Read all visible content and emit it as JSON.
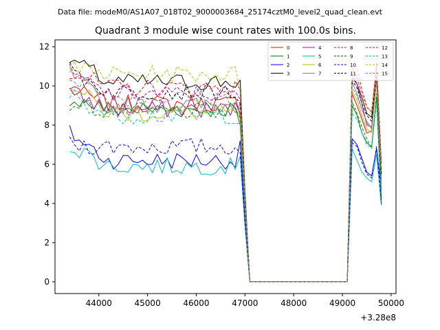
{
  "suptitle": "Data file: modeM0/AS1A07_018T02_9000003684_25174cztM0_level2_quad_clean.evt",
  "chart_data": {
    "type": "line",
    "title": "Quadrant 3 module wise count rates with 100.0s bins.",
    "xlabel": "",
    "ylabel": "",
    "x_offset_label": "+3.28e8",
    "xlim": [
      43100,
      50100
    ],
    "ylim": [
      -0.6,
      12.35
    ],
    "x_ticks": [
      44000,
      45000,
      46000,
      47000,
      48000,
      49000,
      50000
    ],
    "x_tick_labels": [
      "44000",
      "45000",
      "46000",
      "47000",
      "48000",
      "49000",
      "50000"
    ],
    "y_ticks": [
      0,
      2,
      4,
      6,
      8,
      10,
      12
    ],
    "y_tick_labels": [
      "0",
      "2",
      "4",
      "6",
      "8",
      "10",
      "12"
    ],
    "grid": false,
    "legend_placement": "top-right",
    "series_meta": [
      {
        "name": "0",
        "color": "#ff0000",
        "dash": "solid"
      },
      {
        "name": "1",
        "color": "#008000",
        "dash": "solid"
      },
      {
        "name": "2",
        "color": "#0000ff",
        "dash": "solid"
      },
      {
        "name": "3",
        "color": "#000000",
        "dash": "solid"
      },
      {
        "name": "4",
        "color": "#bf00bf",
        "dash": "solid"
      },
      {
        "name": "5",
        "color": "#00bfbf",
        "dash": "solid"
      },
      {
        "name": "6",
        "color": "#bfbf00",
        "dash": "solid"
      },
      {
        "name": "7",
        "color": "#808080",
        "dash": "solid"
      },
      {
        "name": "8",
        "color": "#ff0000",
        "dash": "dashed"
      },
      {
        "name": "9",
        "color": "#008000",
        "dash": "dashed"
      },
      {
        "name": "10",
        "color": "#0000ff",
        "dash": "dashed"
      },
      {
        "name": "11",
        "color": "#000000",
        "dash": "dashed"
      },
      {
        "name": "12",
        "color": "#bf00bf",
        "dash": "dashed"
      },
      {
        "name": "13",
        "color": "#00bfbf",
        "dash": "dashed"
      },
      {
        "name": "14",
        "color": "#bfbf00",
        "dash": "dashed"
      },
      {
        "name": "15",
        "color": "#808080",
        "dash": "dashed"
      }
    ],
    "segment1": {
      "x_start": 43400,
      "x_step": 100,
      "count": 36
    },
    "segment2": {
      "x": [
        49100,
        49200,
        49300,
        49400,
        49500,
        49600,
        49700,
        49800
      ]
    },
    "series_means": [
      9.1,
      8.8,
      6.2,
      10.2,
      8.8,
      5.9,
      8.6,
      9.0,
      9.9,
      8.7,
      6.9,
      9.7,
      9.6,
      8.5,
      10.6,
      9.4
    ],
    "series_starts": [
      9.8,
      9.4,
      7.6,
      11.4,
      9.7,
      7.0,
      10.1,
      10.6,
      10.8,
      9.1,
      7.0,
      10.8,
      10.7,
      9.6,
      10.9,
      10.6
    ],
    "series_drop_end": [
      8.5,
      8.0,
      7.2,
      10.3,
      8.6,
      6.4,
      8.3,
      9.1,
      9.8,
      8.4,
      6.6,
      9.1,
      9.3,
      8.1,
      9.7,
      8.8
    ],
    "series_seg2": [
      [
        0,
        9.6,
        9.0,
        8.3,
        7.6,
        7.7,
        10.4,
        4.0
      ],
      [
        0,
        9.0,
        8.5,
        7.6,
        7.1,
        6.9,
        9.4,
        4.0
      ],
      [
        0,
        7.3,
        7.0,
        6.3,
        5.6,
        5.4,
        6.8,
        4.7
      ],
      [
        0,
        10.4,
        10.1,
        9.4,
        8.6,
        8.4,
        10.9,
        5.5
      ],
      [
        0,
        10.6,
        10.1,
        9.1,
        8.0,
        7.9,
        11.2,
        6.0
      ],
      [
        0,
        6.8,
        6.2,
        5.6,
        5.3,
        5.1,
        6.5,
        3.9
      ],
      [
        0,
        9.7,
        9.3,
        8.5,
        7.8,
        7.6,
        10.2,
        4.9
      ],
      [
        0,
        10.2,
        9.6,
        8.8,
        8.2,
        7.8,
        10.6,
        5.2
      ],
      [
        0,
        10.8,
        10.4,
        9.6,
        8.9,
        8.7,
        11.0,
        5.7
      ],
      [
        0,
        9.2,
        8.6,
        7.9,
        7.3,
        6.8,
        9.6,
        4.3
      ],
      [
        0,
        7.1,
        6.9,
        6.1,
        5.5,
        5.3,
        6.9,
        4.0
      ],
      [
        0,
        10.3,
        9.9,
        9.1,
        8.5,
        8.2,
        10.5,
        5.4
      ],
      [
        0,
        10.9,
        11.0,
        9.8,
        9.0,
        8.6,
        11.1,
        6.1
      ],
      [
        0,
        8.6,
        8.3,
        7.6,
        7.0,
        6.8,
        9.2,
        4.5
      ],
      [
        0,
        10.8,
        10.5,
        9.6,
        9.0,
        8.6,
        10.8,
        5.8
      ],
      [
        0,
        9.9,
        9.5,
        8.8,
        8.1,
        7.9,
        10.4,
        5.0
      ]
    ],
    "amplitude": 0.45,
    "zero_level": 0
  }
}
